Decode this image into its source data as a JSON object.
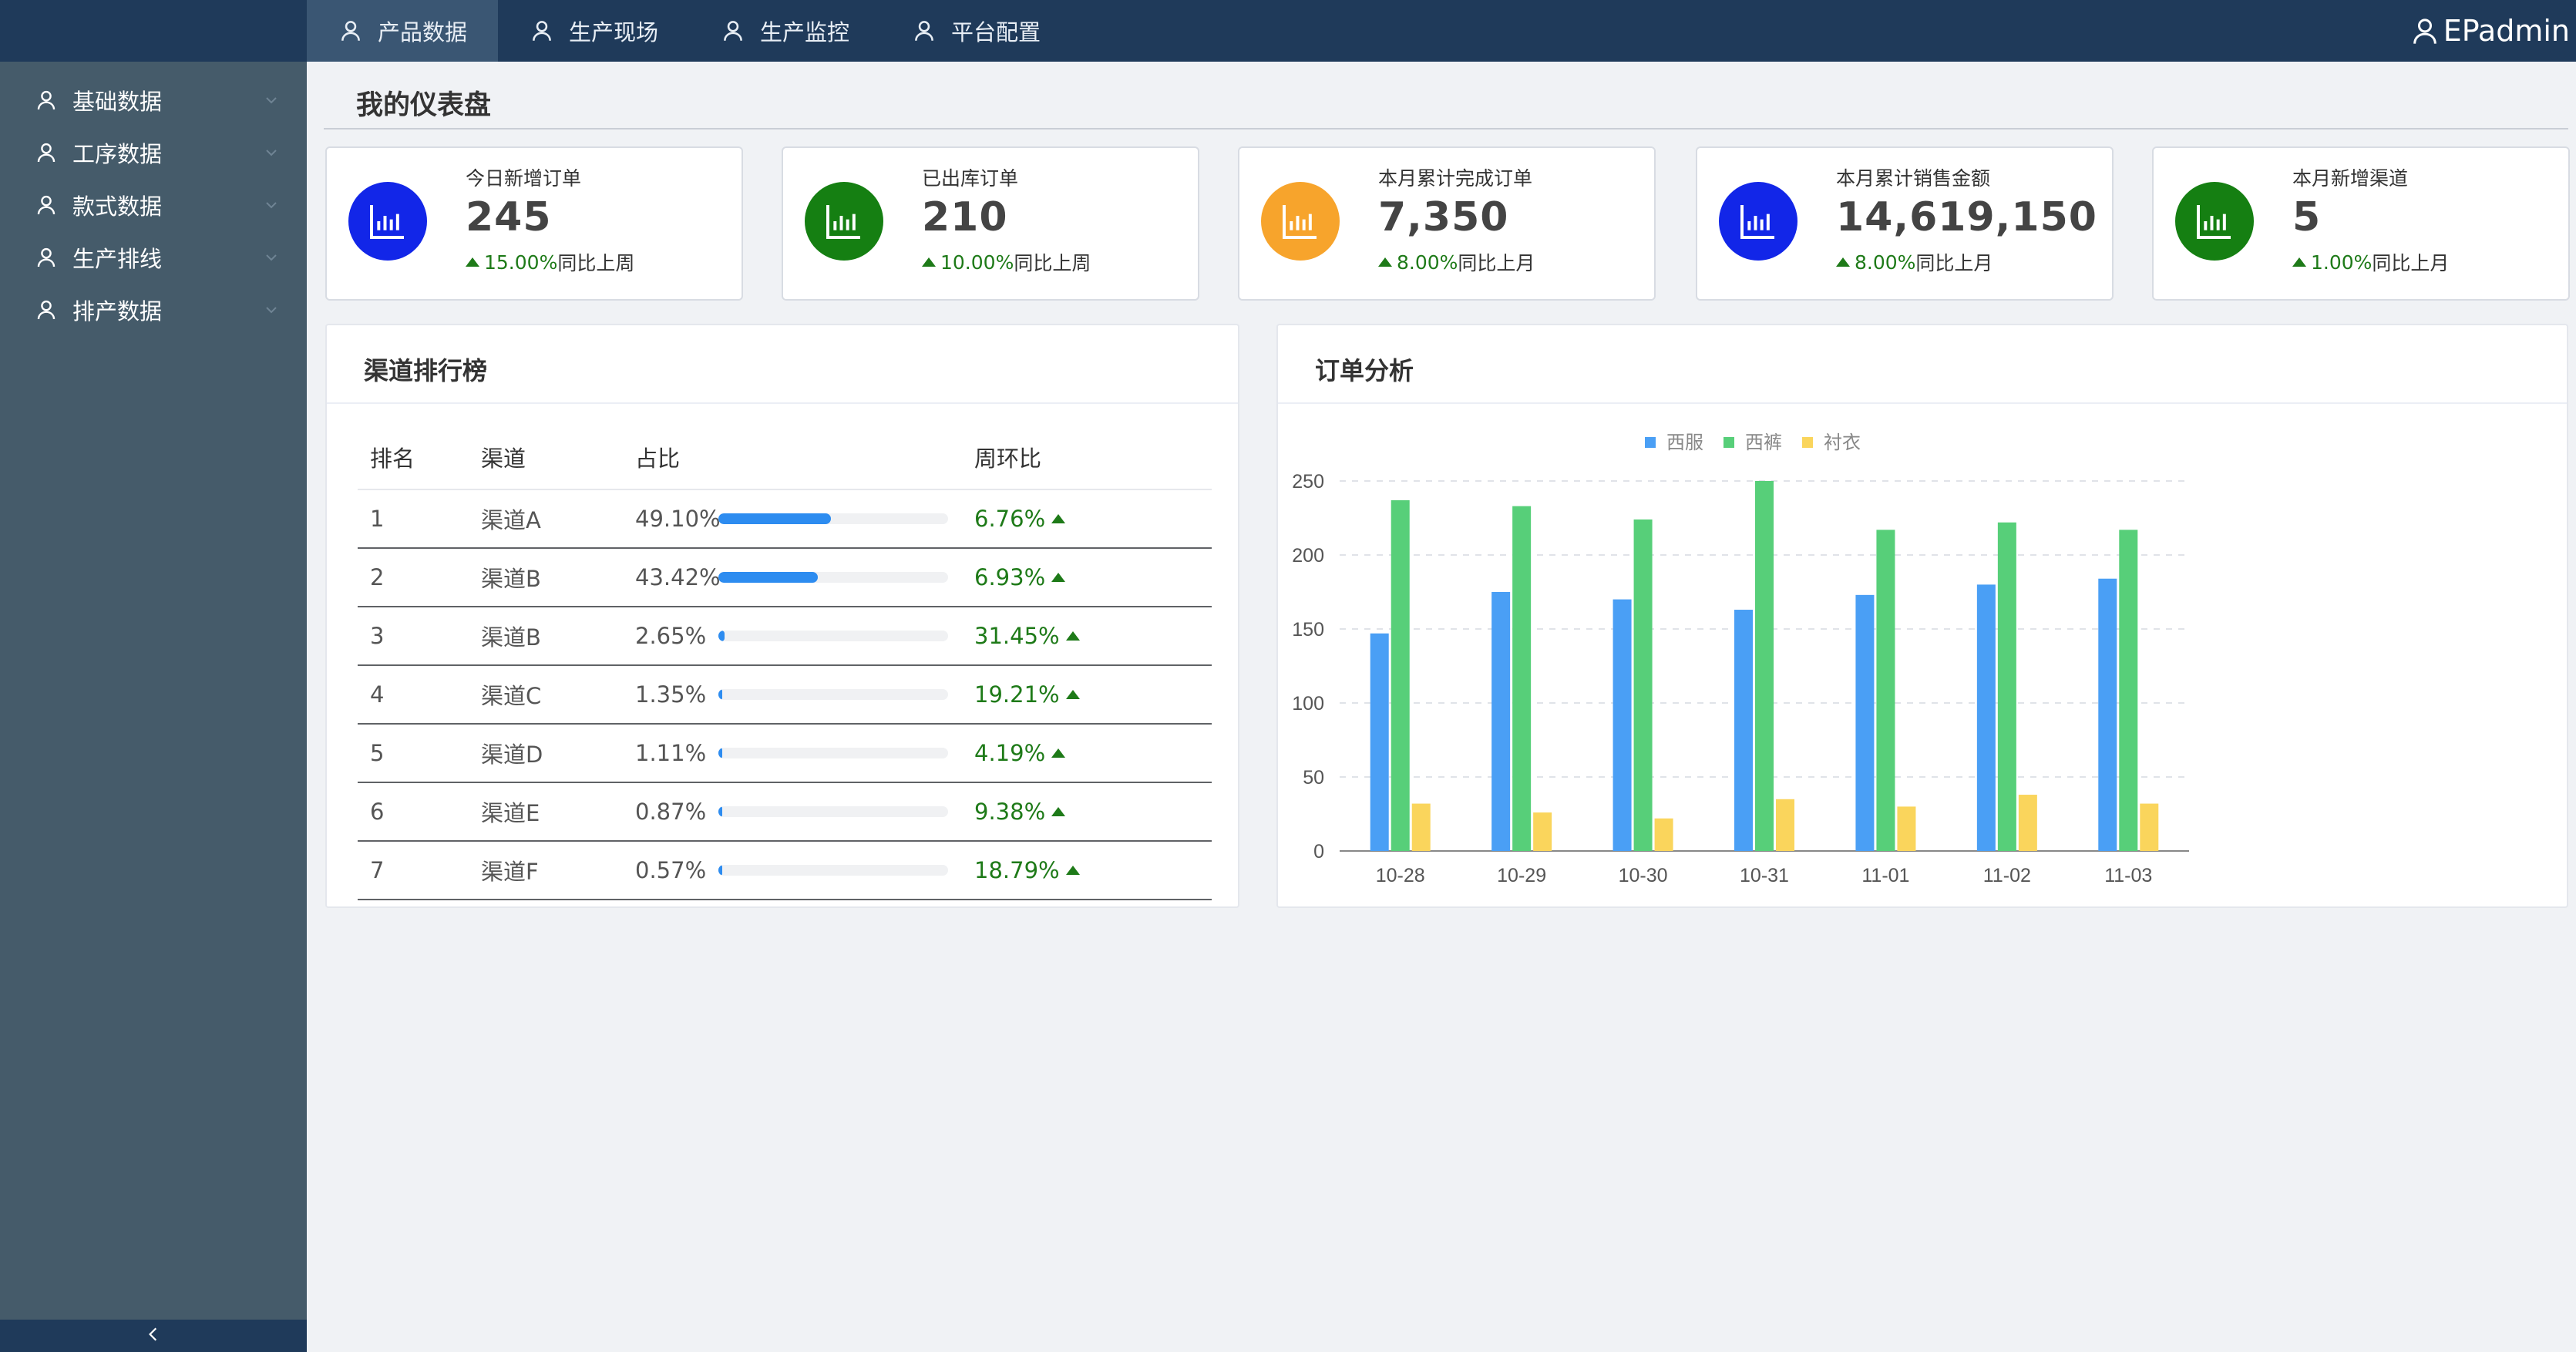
{
  "topnav": {
    "tabs": [
      {
        "label": "产品数据",
        "active": true
      },
      {
        "label": "生产现场",
        "active": false
      },
      {
        "label": "生产监控",
        "active": false
      },
      {
        "label": "平台配置",
        "active": false
      }
    ],
    "user": "EPadmin"
  },
  "sidebar": {
    "items": [
      {
        "label": "基础数据"
      },
      {
        "label": "工序数据"
      },
      {
        "label": "款式数据"
      },
      {
        "label": "生产排线"
      },
      {
        "label": "排产数据"
      }
    ]
  },
  "page_title": "我的仪表盘",
  "cards": [
    {
      "label": "今日新增订单",
      "value": "245",
      "pct": "15.00%",
      "suffix": "同比上周",
      "color": "#1226e8"
    },
    {
      "label": "已出库订单",
      "value": "210",
      "pct": "10.00%",
      "suffix": "同比上周",
      "color": "#157f12"
    },
    {
      "label": "本月累计完成订单",
      "value": "7,350",
      "pct": "8.00%",
      "suffix": "同比上月",
      "color": "#f7a42c"
    },
    {
      "label": "本月累计销售金额",
      "value": "14,619,150",
      "pct": "8.00%",
      "suffix": "同比上月",
      "color": "#1226e8"
    },
    {
      "label": "本月新增渠道",
      "value": "5",
      "pct": "1.00%",
      "suffix": "同比上月",
      "color": "#157f12"
    }
  ],
  "ranking": {
    "title": "渠道排行榜",
    "headers": {
      "rank": "排名",
      "channel": "渠道",
      "share": "占比",
      "wow": "周环比"
    },
    "rows": [
      {
        "rank": "1",
        "channel": "渠道A",
        "share": "49.10%",
        "share_value": 49.1,
        "wow": "6.76%"
      },
      {
        "rank": "2",
        "channel": "渠道B",
        "share": "43.42%",
        "share_value": 43.42,
        "wow": "6.93%"
      },
      {
        "rank": "3",
        "channel": "渠道B",
        "share": "2.65%",
        "share_value": 2.65,
        "wow": "31.45%"
      },
      {
        "rank": "4",
        "channel": "渠道C",
        "share": "1.35%",
        "share_value": 1.35,
        "wow": "19.21%"
      },
      {
        "rank": "5",
        "channel": "渠道D",
        "share": "1.11%",
        "share_value": 1.11,
        "wow": "4.19%"
      },
      {
        "rank": "6",
        "channel": "渠道E",
        "share": "0.87%",
        "share_value": 0.87,
        "wow": "9.38%"
      },
      {
        "rank": "7",
        "channel": "渠道F",
        "share": "0.57%",
        "share_value": 0.57,
        "wow": "18.79%"
      }
    ]
  },
  "order_panel": {
    "title": "订单分析"
  },
  "chart_data": {
    "type": "bar",
    "title": "",
    "categories": [
      "10-28",
      "10-29",
      "10-30",
      "10-31",
      "11-01",
      "11-02",
      "11-03"
    ],
    "series": [
      {
        "name": "西服",
        "color": "#4a9ff5",
        "values": [
          147,
          175,
          170,
          163,
          173,
          180,
          184
        ]
      },
      {
        "name": "西裤",
        "color": "#57cf79",
        "values": [
          237,
          233,
          224,
          250,
          217,
          222,
          217
        ]
      },
      {
        "name": "衬衣",
        "color": "#fad55c",
        "values": [
          32,
          26,
          22,
          35,
          30,
          38,
          32
        ]
      }
    ],
    "ylim": [
      0,
      250
    ],
    "yticks": [
      0,
      50,
      100,
      150,
      200,
      250
    ],
    "grid": true,
    "legend": "top-center"
  },
  "icons": {
    "user": "user-icon",
    "chart": "bar-chart-icon",
    "chevron": "chevron-down-icon",
    "collapse": "chevron-left-icon"
  }
}
